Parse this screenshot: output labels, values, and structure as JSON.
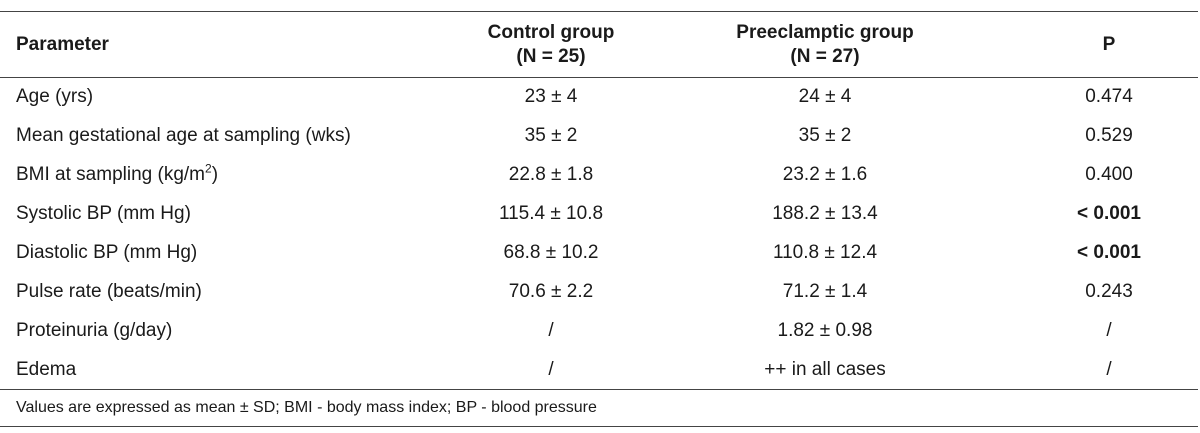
{
  "table": {
    "headers": {
      "parameter": "Parameter",
      "control_line1": "Control group",
      "control_line2": "(N = 25)",
      "preeclamptic_line1": "Preeclamptic group",
      "preeclamptic_line2": "(N = 27)",
      "p": "P"
    },
    "rows": [
      {
        "parameter": "Age (yrs)",
        "control": "23 ± 4",
        "preeclamptic": "24 ± 4",
        "p": "0.474",
        "p_bold": false
      },
      {
        "parameter": "Mean gestational age at sampling (wks)",
        "control": "35 ± 2",
        "preeclamptic": "35 ± 2",
        "p": "0.529",
        "p_bold": false
      },
      {
        "parameter_prefix": "BMI at sampling (kg/m",
        "parameter_sup": "2",
        "parameter_suffix": ")",
        "control": "22.8 ± 1.8",
        "preeclamptic": "23.2 ± 1.6",
        "p": "0.400",
        "p_bold": false
      },
      {
        "parameter": "Systolic BP (mm Hg)",
        "control": "115.4 ± 10.8",
        "preeclamptic": "188.2 ± 13.4",
        "p": "< 0.001",
        "p_bold": true
      },
      {
        "parameter": "Diastolic BP (mm Hg)",
        "control": "68.8 ± 10.2",
        "preeclamptic": "110.8 ± 12.4",
        "p": "< 0.001",
        "p_bold": true
      },
      {
        "parameter": "Pulse rate (beats/min)",
        "control": "70.6 ± 2.2",
        "preeclamptic": "71.2 ± 1.4",
        "p": "0.243",
        "p_bold": false
      },
      {
        "parameter": "Proteinuria (g/day)",
        "control": "/",
        "preeclamptic": "1.82 ± 0.98",
        "p": "/",
        "p_bold": false
      },
      {
        "parameter": "Edema",
        "control": "/",
        "preeclamptic": "++ in all cases",
        "p": "/",
        "p_bold": false
      }
    ],
    "footnote": "Values are expressed as mean ± SD; BMI - body mass index; BP - blood pressure"
  }
}
